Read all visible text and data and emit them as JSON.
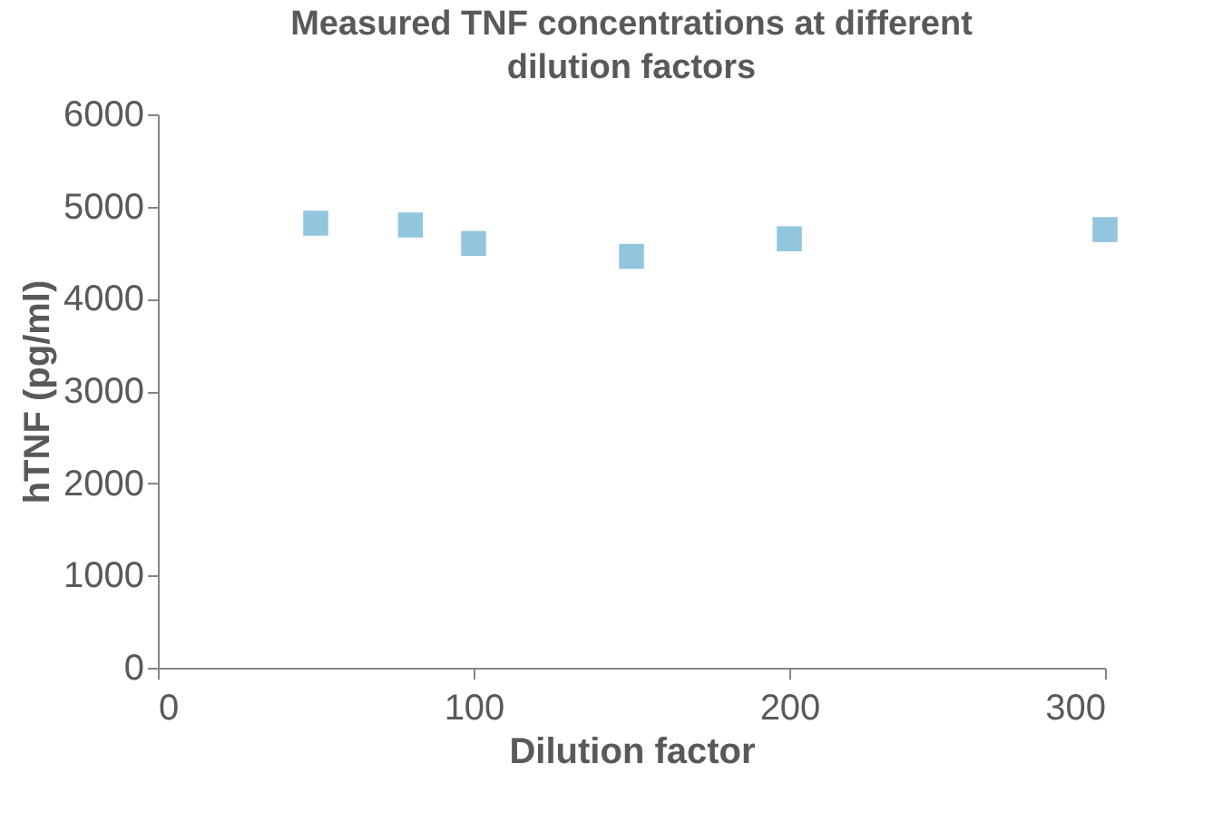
{
  "chart_data": {
    "type": "scatter",
    "title": "Measured TNF concentrations at different dilution factors",
    "xlabel": "Dilution factor",
    "ylabel": "hTNF (pg/ml)",
    "x": [
      50,
      80,
      100,
      150,
      200,
      300
    ],
    "series": [
      {
        "color": "#92c5de",
        "values": [
          4820,
          4800,
          4600,
          4460,
          4650,
          4750
        ]
      }
    ],
    "xlim": [
      0,
      300
    ],
    "xticks": [
      0,
      100,
      200,
      300
    ],
    "ylim": [
      0,
      6000
    ],
    "yticks": [
      0,
      1000,
      2000,
      3000,
      4000,
      5000,
      6000
    ],
    "grid": false,
    "legend": false,
    "marker": "square"
  }
}
